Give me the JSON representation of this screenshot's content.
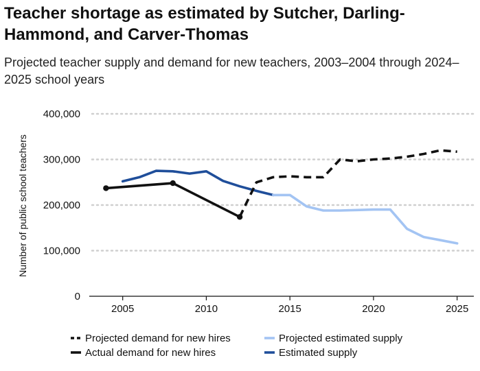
{
  "header": {
    "title": "Teacher shortage as estimated by Sutcher, Darling-Hammond, and Carver-Thomas",
    "subtitle": "Projected teacher supply and demand for new teachers, 2003–2004 through 2024–2025 school years"
  },
  "chart_data": {
    "type": "line",
    "title": "Teacher shortage as estimated by Sutcher, Darling-Hammond, and Carver-Thomas",
    "subtitle": "Projected teacher supply and demand for new teachers, 2003–2004 through 2024–2025 school years",
    "xlabel": "",
    "ylabel": "Number of public school teachers",
    "xlim": [
      2003,
      2026
    ],
    "ylim": [
      0,
      400000
    ],
    "grid": "horizontal dotted",
    "legend_position": "bottom",
    "x_ticks": [
      2005,
      2010,
      2015,
      2020,
      2025
    ],
    "x_tick_labels": [
      "2005",
      "2010",
      "2015",
      "2020",
      "2025"
    ],
    "y_ticks": [
      0,
      100000,
      200000,
      300000,
      400000
    ],
    "y_tick_labels": [
      "0",
      "100,000",
      "200,000",
      "300,000",
      "400,000"
    ],
    "series": [
      {
        "name": "Estimated supply",
        "color": "#1f4e9a",
        "dash": "solid",
        "x": [
          2005,
          2006,
          2007,
          2008,
          2009,
          2010,
          2011,
          2012,
          2013,
          2014
        ],
        "y": [
          252000,
          261000,
          275000,
          274000,
          269000,
          274000,
          253000,
          241000,
          231000,
          222000
        ]
      },
      {
        "name": "Projected estimated supply",
        "color": "#a3c4f3",
        "dash": "solid",
        "x": [
          2014,
          2015,
          2016,
          2017,
          2018,
          2019,
          2020,
          2021,
          2022,
          2023,
          2024,
          2025
        ],
        "y": [
          222000,
          222000,
          197000,
          188000,
          188000,
          189000,
          190000,
          190000,
          148000,
          130000,
          123000,
          116000
        ]
      },
      {
        "name": "Actual demand for new hires",
        "color": "#111111",
        "dash": "solid",
        "x": [
          2004,
          2008,
          2012
        ],
        "y": [
          237000,
          248000,
          174000
        ],
        "markers": [
          2004,
          2008,
          2012
        ]
      },
      {
        "name": "Projected demand for new hires",
        "color": "#111111",
        "dash": "dashed",
        "x": [
          2012,
          2013,
          2014,
          2015,
          2016,
          2017,
          2018,
          2019,
          2020,
          2021,
          2022,
          2023,
          2024,
          2025
        ],
        "y": [
          174000,
          250000,
          261000,
          263000,
          261000,
          261000,
          300000,
          296000,
          300000,
          302000,
          306000,
          312000,
          320000,
          317000
        ]
      }
    ],
    "legend": [
      {
        "label": "Projected demand for new hires",
        "color": "#111111",
        "dash": "dashed"
      },
      {
        "label": "Projected estimated supply",
        "color": "#a3c4f3",
        "dash": "solid"
      },
      {
        "label": "Actual demand for new hires",
        "color": "#111111",
        "dash": "solid"
      },
      {
        "label": "Estimated supply",
        "color": "#1f4e9a",
        "dash": "solid"
      }
    ]
  }
}
